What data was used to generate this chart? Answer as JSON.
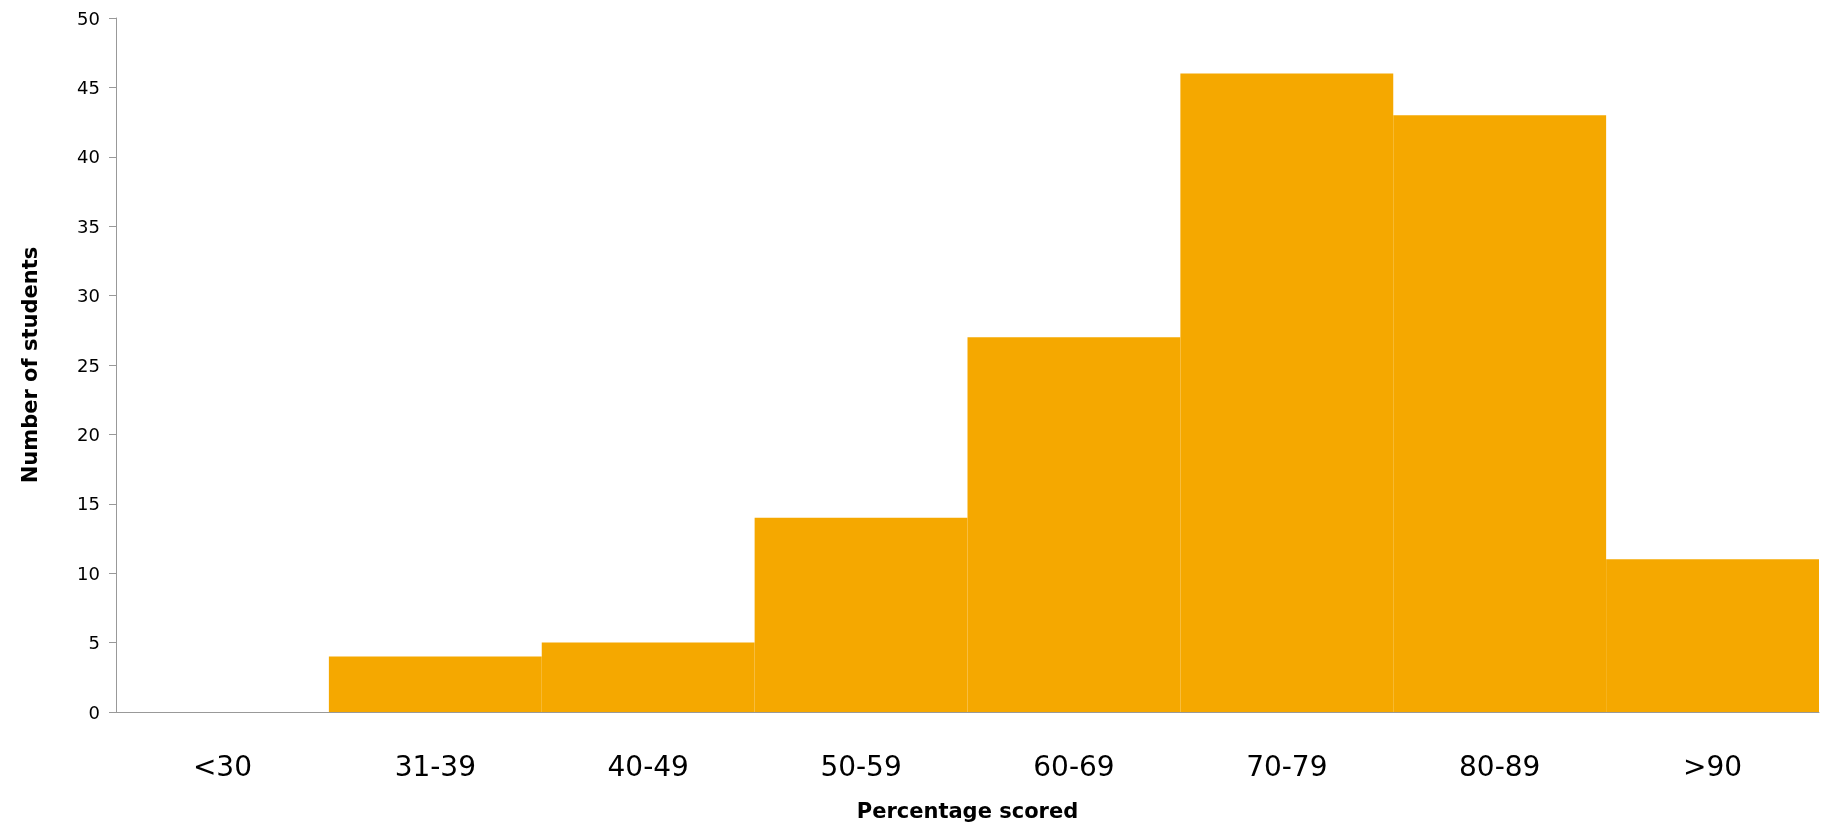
{
  "chart_data": {
    "type": "bar",
    "xlabel": "Percentage scored",
    "ylabel": "Number of students",
    "categories": [
      "<30",
      "31-39",
      "40-49",
      "50-59",
      "60-69",
      "70-79",
      "80-89",
      ">90"
    ],
    "values": [
      0,
      4,
      5,
      14,
      27,
      46,
      43,
      11
    ],
    "color": "#f5a800",
    "ylim": [
      0,
      50
    ],
    "yticks": [
      0,
      5,
      10,
      15,
      20,
      25,
      30,
      35,
      40,
      45,
      50
    ],
    "grid": false
  }
}
